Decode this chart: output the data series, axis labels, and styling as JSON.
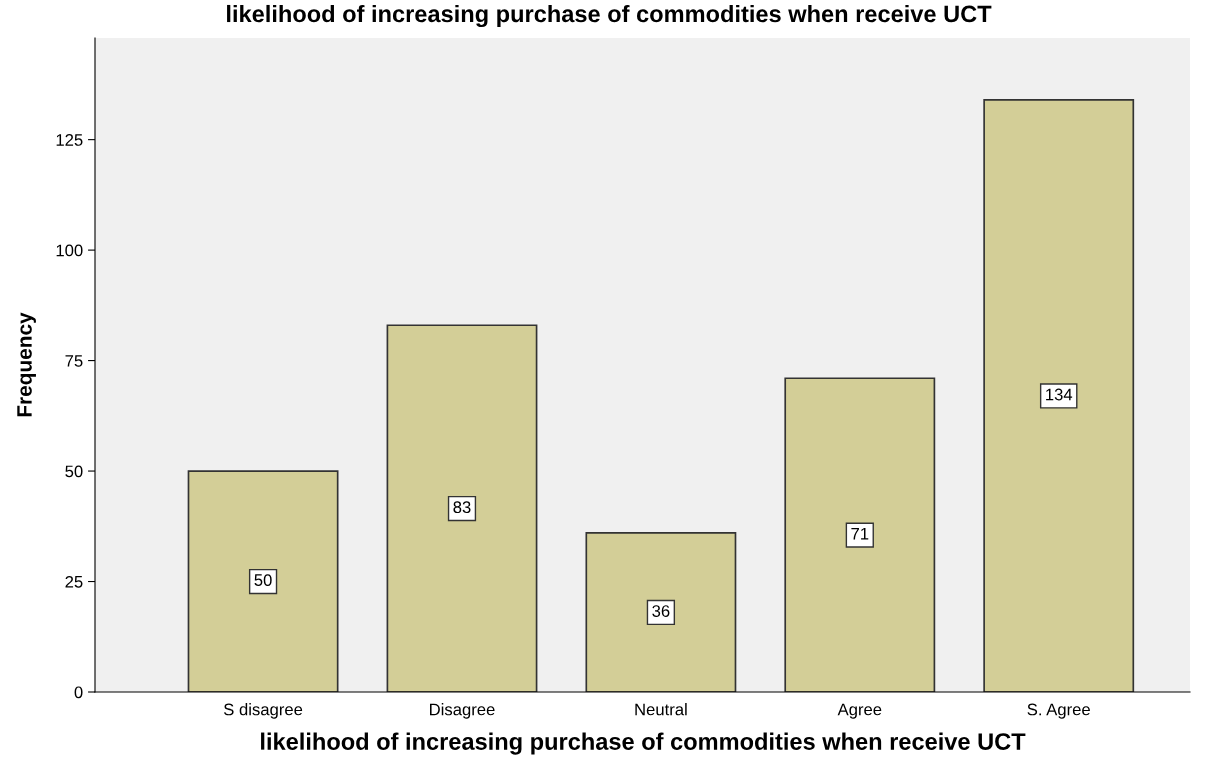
{
  "chart_data": {
    "type": "bar",
    "title": "likelihood of increasing purchase of commodities when receive UCT",
    "xlabel": "likelihood of increasing purchase of commodities when receive UCT",
    "ylabel": "Frequency",
    "categories": [
      "S disagree",
      "Disagree",
      "Neutral",
      "Agree",
      "S. Agree"
    ],
    "values": [
      50,
      83,
      36,
      71,
      134
    ],
    "color": "#d3ce97",
    "ylim": [
      0,
      148
    ],
    "yticks": [
      0,
      25,
      50,
      75,
      100,
      125
    ],
    "data_labels": true,
    "grid": false,
    "legend": false
  }
}
